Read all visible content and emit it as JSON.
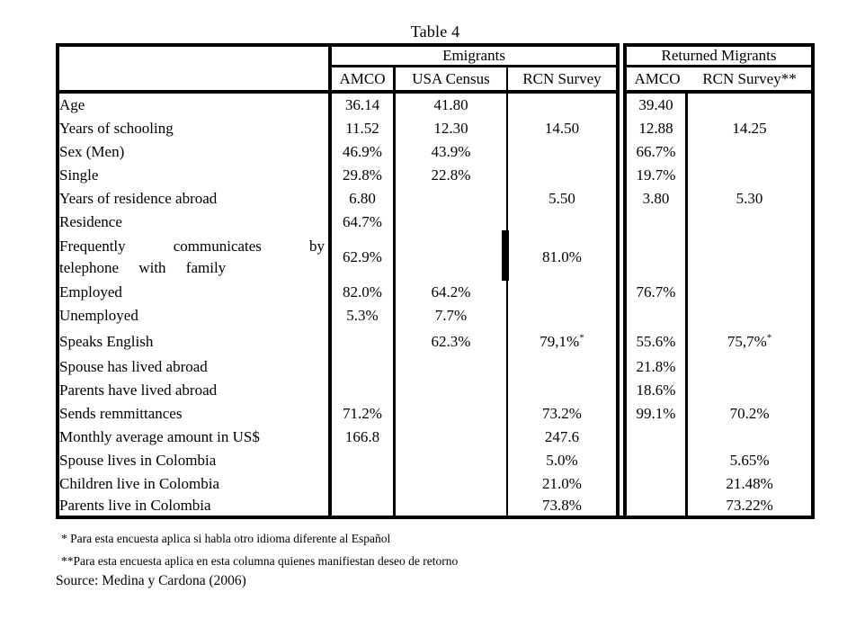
{
  "title": "Table 4",
  "table": {
    "groups": [
      {
        "label": "Emigrants"
      },
      {
        "label": "Returned Migrants"
      }
    ],
    "columns": [
      "AMCO",
      "USA Census",
      "RCN Survey",
      "AMCO",
      "RCN Survey**"
    ],
    "rows": [
      {
        "label": "Age",
        "values": [
          "36.14",
          "41.80",
          "",
          "39.40",
          ""
        ]
      },
      {
        "label": "Years of schooling",
        "values": [
          "11.52",
          "12.30",
          "14.50",
          "12.88",
          "14.25"
        ]
      },
      {
        "label": "Sex (Men)",
        "values": [
          "46.9%",
          "43.9%",
          "",
          "66.7%",
          ""
        ]
      },
      {
        "label": "Single",
        "values": [
          "29.8%",
          "22.8%",
          "",
          "19.7%",
          ""
        ]
      },
      {
        "label": "Years of residence abroad",
        "values": [
          "6.80",
          "",
          "5.50",
          "3.80",
          "5.30"
        ]
      },
      {
        "label": "Residence",
        "values": [
          "64.7%",
          "",
          "",
          "",
          ""
        ]
      },
      {
        "label": "Frequently communicates by telephone with family",
        "values": [
          "62.9%",
          "",
          "81.0%",
          "",
          ""
        ]
      },
      {
        "label": "Employed",
        "values": [
          "82.0%",
          "64.2%",
          "",
          "76.7%",
          ""
        ]
      },
      {
        "label": "Unemployed",
        "values": [
          "5.3%",
          "7.7%",
          "",
          "",
          ""
        ]
      },
      {
        "label": "Speaks English",
        "values": [
          "",
          "62.3%",
          "79,1%",
          "55.6%",
          "75,7%"
        ],
        "note_marks": [
          "",
          "",
          "*",
          "",
          "*"
        ]
      },
      {
        "label": "Spouse has lived abroad",
        "values": [
          "",
          "",
          "",
          "21.8%",
          ""
        ]
      },
      {
        "label": "Parents have lived abroad",
        "values": [
          "",
          "",
          "",
          "18.6%",
          ""
        ]
      },
      {
        "label": "Sends remmittances",
        "values": [
          "71.2%",
          "",
          "73.2%",
          "99.1%",
          "70.2%"
        ]
      },
      {
        "label": "Monthly average amount in US$",
        "values": [
          "166.8",
          "",
          "247.6",
          "",
          ""
        ]
      },
      {
        "label": "Spouse lives in Colombia",
        "values": [
          "",
          "",
          "5.0%",
          "",
          "5.65%"
        ]
      },
      {
        "label": "Children live in Colombia",
        "values": [
          "",
          "",
          "21.0%",
          "",
          "21.48%"
        ]
      },
      {
        "label": "Parents live in Colombia",
        "values": [
          "",
          "",
          "73.8%",
          "",
          "73.22%"
        ]
      }
    ]
  },
  "footnotes": [
    "* Para esta encuesta aplica si habla otro idioma diferente al Español",
    "**Para esta encuesta aplica en esta columna quienes manifiestan deseo de retorno"
  ],
  "source": "Source: Medina y Cardona (2006)"
}
